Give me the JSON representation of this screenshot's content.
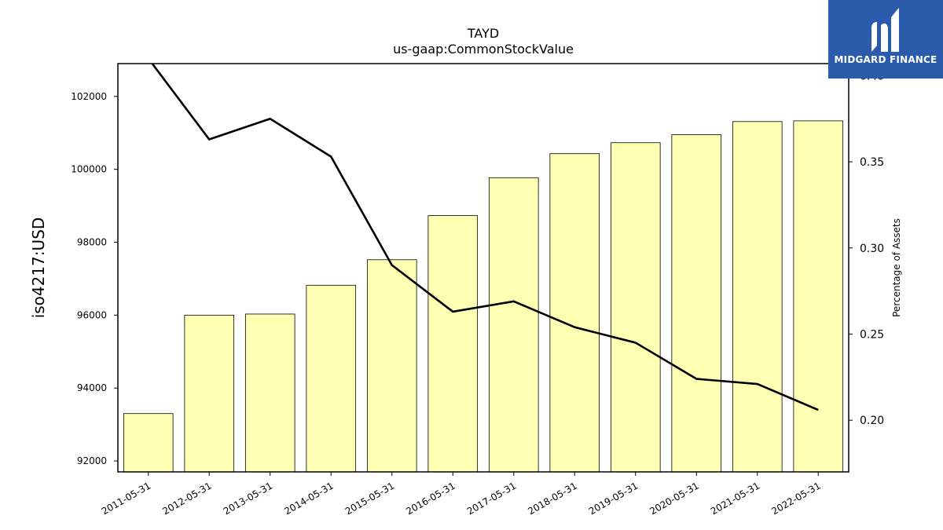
{
  "brand": {
    "name": "MIDGARD FINANCE",
    "logo_icon": "midgard-logo-icon",
    "color": "#2b5bab"
  },
  "chart_data": {
    "type": "bar",
    "title": "TAYD",
    "subtitle": "us-gaap:CommonStockValue",
    "ylabel": "iso4217:USD",
    "y2label": "Percentage of Assets",
    "categories": [
      "2011-05-31",
      "2012-05-31",
      "2013-05-31",
      "2014-05-31",
      "2015-05-31",
      "2016-05-31",
      "2017-05-31",
      "2018-05-31",
      "2019-05-31",
      "2020-05-31",
      "2021-05-31",
      "2022-05-31"
    ],
    "series": [
      {
        "type": "bar",
        "axis": "left",
        "color": "#ffffb3",
        "values": [
          93300,
          96000,
          96030,
          96820,
          97520,
          98730,
          99770,
          100430,
          100730,
          100950,
          101310,
          101330
        ]
      },
      {
        "type": "line",
        "axis": "right",
        "color": "#000000",
        "values": [
          0.41,
          0.363,
          0.375,
          0.353,
          0.29,
          0.263,
          0.269,
          0.254,
          0.245,
          0.224,
          0.221,
          0.206
        ]
      }
    ],
    "ylim": [
      91700,
      102900
    ],
    "y2lim": [
      0.17,
      0.407
    ],
    "yticks": [
      "92000",
      "94000",
      "96000",
      "98000",
      "100000",
      "102000"
    ],
    "y2ticks": [
      "0.20",
      "0.25",
      "0.30",
      "0.35",
      "0.40"
    ],
    "grid": false,
    "legend": "none"
  }
}
